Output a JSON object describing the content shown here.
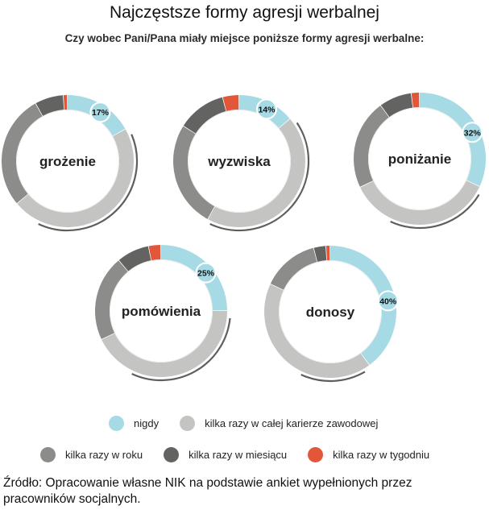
{
  "title": "Najczęstsze formy agresji werbalnej",
  "subtitle": "Czy wobec Pani/Pana miały miejsce poniższe formy agresji werbalne:",
  "colors": {
    "nigdy": "#a6dbe6",
    "kilka_razy_kariera": "#c4c4c2",
    "kilka_razy_rok": "#8c8c8b",
    "kilka_razy_miesiac": "#636462",
    "kilka_razy_tydzien": "#e2573a"
  },
  "chart_data": {
    "type": "pie",
    "variant": "donut",
    "categories": [
      "nigdy",
      "kilka razy w całej karierze zawodowej",
      "kilka razy w roku",
      "kilka razy w miesiącu",
      "kilka razy w tygodniu"
    ],
    "series": [
      {
        "name": "grożenie",
        "values": [
          17,
          47,
          28,
          7,
          1
        ],
        "label": "17%"
      },
      {
        "name": "wyzwiska",
        "values": [
          14,
          44,
          26,
          12,
          4
        ],
        "label": "14%"
      },
      {
        "name": "poniżanie",
        "values": [
          32,
          36,
          22,
          8,
          2
        ],
        "label": "32%"
      },
      {
        "name": "pomówienia",
        "values": [
          25,
          43,
          21,
          8,
          3
        ],
        "label": "25%"
      },
      {
        "name": "donosy",
        "values": [
          40,
          42,
          14,
          3,
          1
        ],
        "label": "40%"
      }
    ],
    "legend_placement": "bottom"
  },
  "legend": {
    "row1": [
      "nigdy",
      "kilka razy w całej karierze zawodowej"
    ],
    "row2": [
      "kilka razy w roku",
      "kilka razy w miesiącu",
      "kilka razy w tygodniu"
    ]
  },
  "source": "Źródło: Opracowanie własne NIK na podstawie ankiet wypełnionych przez pracowników socjalnych."
}
